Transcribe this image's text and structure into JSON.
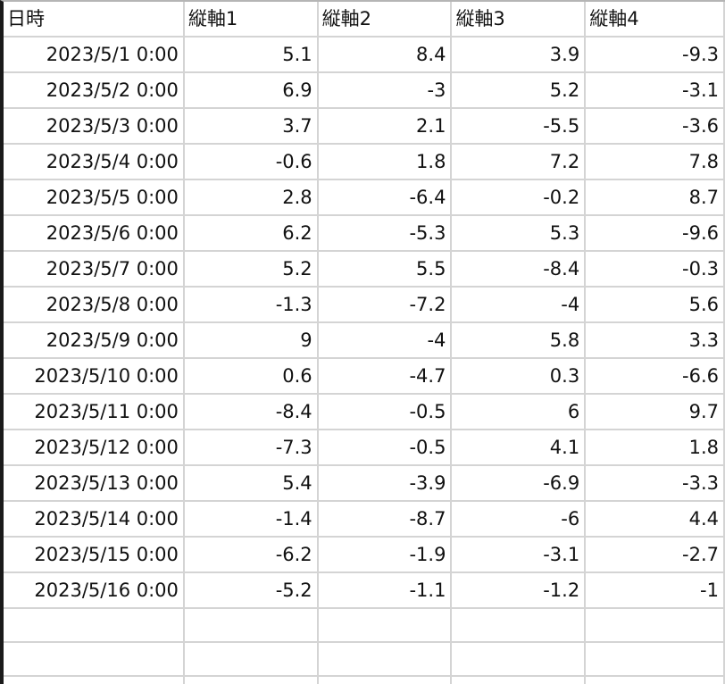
{
  "headers": [
    "日時",
    "縦軸1",
    "縦軸2",
    "縦軸3",
    "縦軸4"
  ],
  "rows": [
    [
      "2023/5/1 0:00",
      "5.1",
      "8.4",
      "3.9",
      "-9.3"
    ],
    [
      "2023/5/2 0:00",
      "6.9",
      "-3",
      "5.2",
      "-3.1"
    ],
    [
      "2023/5/3 0:00",
      "3.7",
      "2.1",
      "-5.5",
      "-3.6"
    ],
    [
      "2023/5/4 0:00",
      "-0.6",
      "1.8",
      "7.2",
      "7.8"
    ],
    [
      "2023/5/5 0:00",
      "2.8",
      "-6.4",
      "-0.2",
      "8.7"
    ],
    [
      "2023/5/6 0:00",
      "6.2",
      "-5.3",
      "5.3",
      "-9.6"
    ],
    [
      "2023/5/7 0:00",
      "5.2",
      "5.5",
      "-8.4",
      "-0.3"
    ],
    [
      "2023/5/8 0:00",
      "-1.3",
      "-7.2",
      "-4",
      "5.6"
    ],
    [
      "2023/5/9 0:00",
      "9",
      "-4",
      "5.8",
      "3.3"
    ],
    [
      "2023/5/10 0:00",
      "0.6",
      "-4.7",
      "0.3",
      "-6.6"
    ],
    [
      "2023/5/11 0:00",
      "-8.4",
      "-0.5",
      "6",
      "9.7"
    ],
    [
      "2023/5/12 0:00",
      "-7.3",
      "-0.5",
      "4.1",
      "1.8"
    ],
    [
      "2023/5/13 0:00",
      "5.4",
      "-3.9",
      "-6.9",
      "-3.3"
    ],
    [
      "2023/5/14 0:00",
      "-1.4",
      "-8.7",
      "-6",
      "4.4"
    ],
    [
      "2023/5/15 0:00",
      "-6.2",
      "-1.9",
      "-3.1",
      "-2.7"
    ],
    [
      "2023/5/16 0:00",
      "-5.2",
      "-1.1",
      "-1.2",
      "-1"
    ]
  ],
  "empty_rows": 3,
  "colors": {
    "gridline": "#d4d4d4",
    "text": "#111111",
    "background": "#ffffff"
  }
}
